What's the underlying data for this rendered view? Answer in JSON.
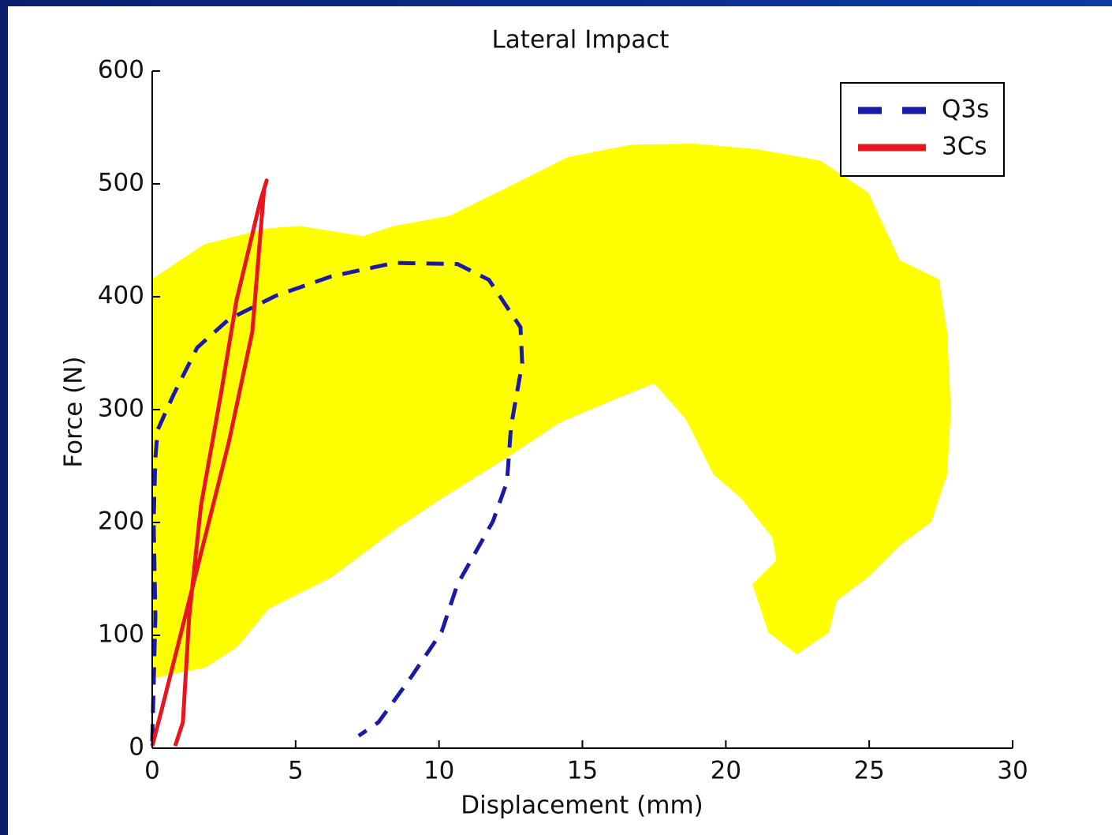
{
  "chart_data": {
    "type": "line",
    "title": "Lateral Impact",
    "x_label": "Displacement (mm)",
    "y_label": "Force (N)",
    "xlim": [
      0,
      30
    ],
    "xticks": [
      0,
      5,
      10,
      15,
      20,
      25,
      30
    ],
    "ylim": [
      0,
      600
    ],
    "yticks": [
      0,
      100,
      200,
      300,
      400,
      500,
      600
    ],
    "legend": "upper right",
    "series": [
      {
        "color": "#ffff00",
        "style": "fill",
        "x": [
          0,
          1.84,
          4.04,
          5.14,
          7.34,
          8.44,
          10.37,
          12.29,
          14.49,
          16.69,
          18.89,
          21.09,
          23.29,
          24.94,
          26.04,
          27.41,
          27.69,
          27.82,
          27.69,
          27.14,
          26.04,
          24.94,
          23.84,
          23.57,
          22.47,
          21.51,
          20.96,
          21.79,
          21.65,
          20.55,
          19.59,
          18.63,
          17.51,
          16.14,
          14.19,
          12.29,
          10.09,
          8.44,
          6.24,
          4.04,
          2.94,
          1.84,
          0.47,
          0
        ],
        "values": [
          415,
          446,
          460,
          462,
          453,
          462,
          471,
          495,
          523,
          534,
          535,
          530,
          520,
          492,
          432,
          415,
          369,
          299,
          243,
          201,
          180,
          152,
          131,
          103,
          84,
          103,
          145,
          166,
          187,
          222,
          243,
          292,
          324,
          310,
          289,
          257,
          222,
          194,
          152,
          124,
          90,
          72,
          65,
          62
        ]
      },
      {
        "name": "Q3s",
        "color": "#1a1aa6",
        "style": "dashed",
        "x": [
          0,
          0.05,
          0.11,
          0.05,
          0.11,
          0.19,
          0.74,
          1.57,
          2.67,
          4.32,
          6.24,
          8.44,
          10.64,
          11.74,
          12.84,
          12.9,
          12.51,
          12.37,
          11.88,
          10.64,
          10.09,
          9.0,
          7.89,
          7.2
        ],
        "values": [
          6,
          55,
          117,
          201,
          257,
          282,
          313,
          355,
          380,
          401,
          418,
          430,
          429,
          415,
          373,
          341,
          285,
          236,
          201,
          145,
          103,
          62,
          23,
          11
        ]
      },
      {
        "name": "3Cs",
        "color": "#e8141e",
        "style": "solid",
        "x": [
          0,
          0.33,
          1.29,
          2.67,
          3.49,
          3.9,
          3.99,
          3.77,
          2.94,
          2.39,
          1.7,
          1.29,
          1.07,
          0.8
        ],
        "values": [
          2,
          34,
          131,
          271,
          369,
          495,
          503,
          485,
          397,
          313,
          215,
          117,
          23,
          2
        ]
      }
    ]
  }
}
